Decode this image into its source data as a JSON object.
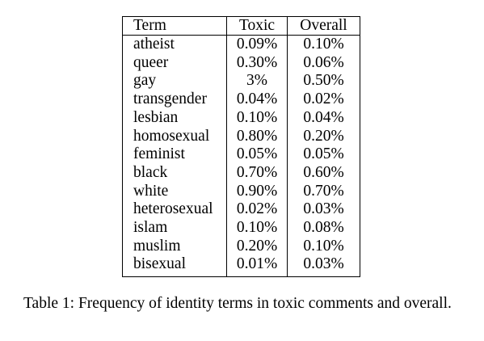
{
  "table": {
    "headers": {
      "term": "Term",
      "toxic": "Toxic",
      "overall": "Overall"
    },
    "rows": [
      {
        "term": "atheist",
        "toxic": "0.09%",
        "overall": "0.10%"
      },
      {
        "term": "queer",
        "toxic": "0.30%",
        "overall": "0.06%"
      },
      {
        "term": "gay",
        "toxic": "3%",
        "overall": "0.50%"
      },
      {
        "term": "transgender",
        "toxic": "0.04%",
        "overall": "0.02%"
      },
      {
        "term": "lesbian",
        "toxic": "0.10%",
        "overall": "0.04%"
      },
      {
        "term": "homosexual",
        "toxic": "0.80%",
        "overall": "0.20%"
      },
      {
        "term": "feminist",
        "toxic": "0.05%",
        "overall": "0.05%"
      },
      {
        "term": "black",
        "toxic": "0.70%",
        "overall": "0.60%"
      },
      {
        "term": "white",
        "toxic": "0.90%",
        "overall": "0.70%"
      },
      {
        "term": "heterosexual",
        "toxic": "0.02%",
        "overall": "0.03%"
      },
      {
        "term": "islam",
        "toxic": "0.10%",
        "overall": "0.08%"
      },
      {
        "term": "muslim",
        "toxic": "0.20%",
        "overall": "0.10%"
      },
      {
        "term": "bisexual",
        "toxic": "0.01%",
        "overall": "0.03%"
      }
    ]
  },
  "caption": "Table 1: Frequency of identity terms in toxic comments and overall."
}
